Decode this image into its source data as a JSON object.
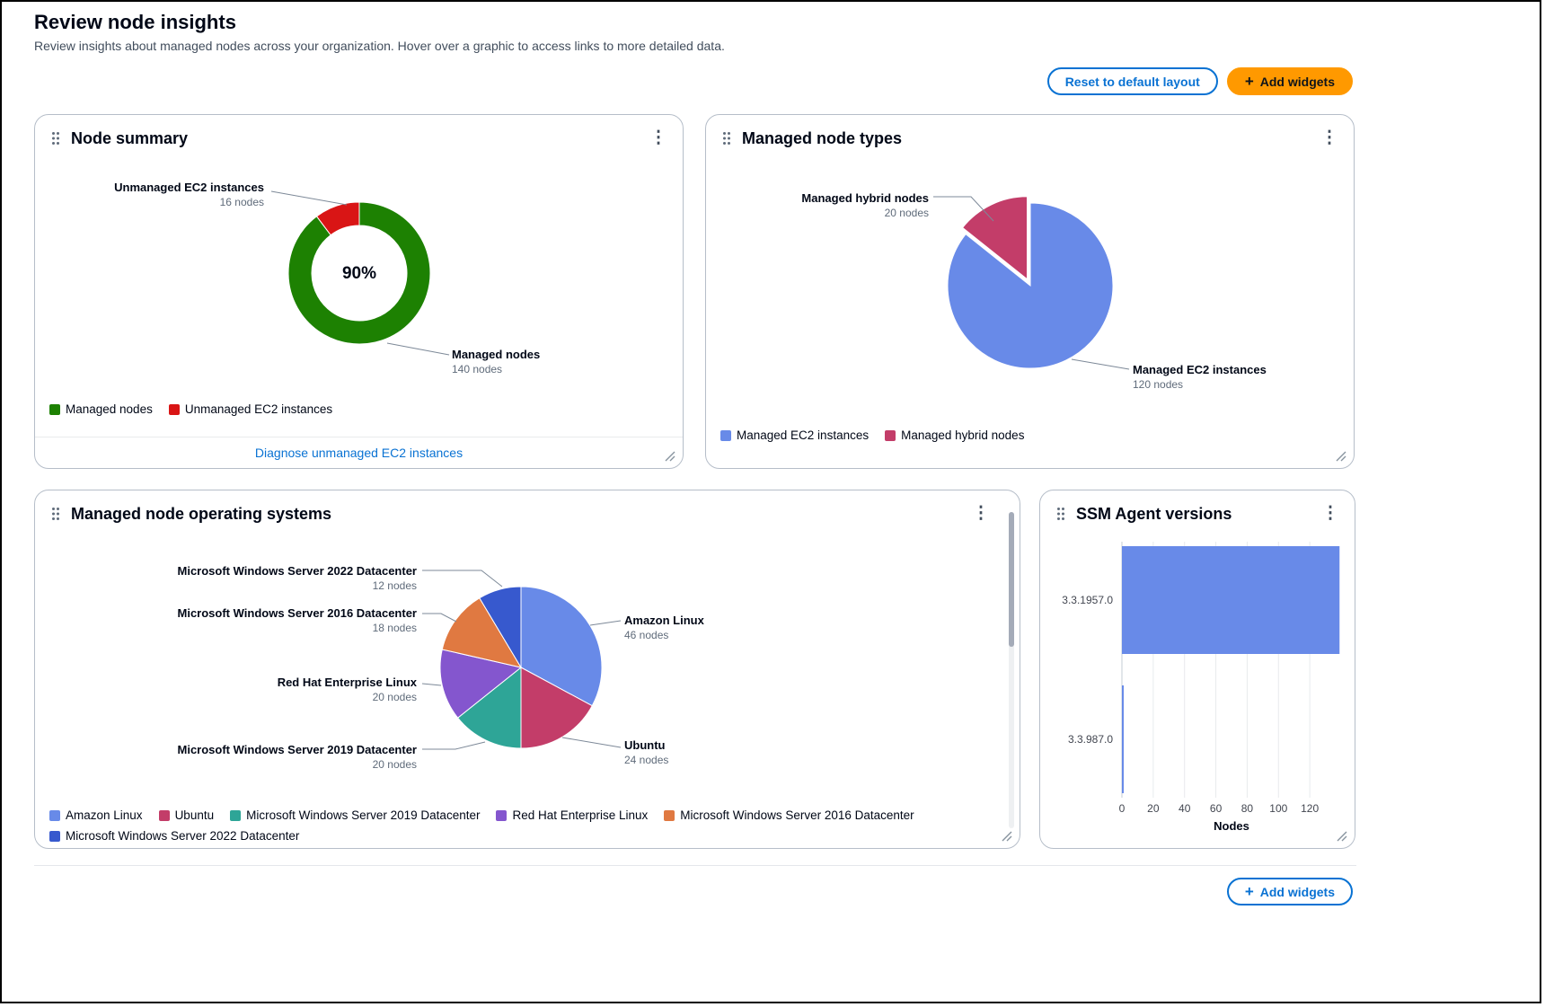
{
  "page": {
    "title": "Review node insights",
    "subtitle": "Review insights about managed nodes across your organization. Hover over a graphic to access links to more detailed data.",
    "buttons": {
      "reset": "Reset to default layout",
      "add_widgets_top": "Add widgets",
      "add_widgets_bottom": "Add widgets"
    }
  },
  "icons": {
    "kebab": "⋮",
    "plus": "+"
  },
  "links": {
    "diagnose_unmanaged": "Diagnose unmanaged EC2 instances"
  },
  "chart_data": [
    {
      "id": "node-summary",
      "type": "donut",
      "title": "Node summary",
      "center_label": "90%",
      "series": [
        {
          "label": "Managed nodes",
          "value": 140,
          "value_label": "140 nodes",
          "color": "#1d8102"
        },
        {
          "label": "Unmanaged EC2 instances",
          "value": 16,
          "value_label": "16 nodes",
          "color": "#d91515"
        }
      ]
    },
    {
      "id": "managed-node-types",
      "type": "pie",
      "title": "Managed node types",
      "series": [
        {
          "label": "Managed EC2 instances",
          "value": 120,
          "value_label": "120 nodes",
          "color": "#688ae8"
        },
        {
          "label": "Managed hybrid nodes",
          "value": 20,
          "value_label": "20 nodes",
          "color": "#c33d69"
        }
      ]
    },
    {
      "id": "managed-node-operating-systems",
      "type": "pie",
      "title": "Managed node operating systems",
      "series": [
        {
          "label": "Amazon Linux",
          "value": 46,
          "value_label": "46 nodes",
          "color": "#688ae8"
        },
        {
          "label": "Ubuntu",
          "value": 24,
          "value_label": "24 nodes",
          "color": "#c33d69"
        },
        {
          "label": "Microsoft Windows Server 2019 Datacenter",
          "value": 20,
          "value_label": "20 nodes",
          "color": "#2ea597"
        },
        {
          "label": "Red Hat Enterprise Linux",
          "value": 20,
          "value_label": "20 nodes",
          "color": "#8456ce"
        },
        {
          "label": "Microsoft Windows Server 2016 Datacenter",
          "value": 18,
          "value_label": "18 nodes",
          "color": "#e07941"
        },
        {
          "label": "Microsoft Windows Server 2022 Datacenter",
          "value": 12,
          "value_label": "12 nodes",
          "color": "#3759ce"
        }
      ]
    },
    {
      "id": "ssm-agent-versions",
      "type": "bar-horizontal",
      "title": "SSM Agent versions",
      "categories": [
        "3.3.1957.0",
        "3.3.987.0"
      ],
      "values": [
        139,
        1
      ],
      "bar_color": "#688ae8",
      "xlabel": "Nodes",
      "xticks": [
        0,
        20,
        40,
        60,
        80,
        100,
        120
      ],
      "xmax": 140
    }
  ]
}
